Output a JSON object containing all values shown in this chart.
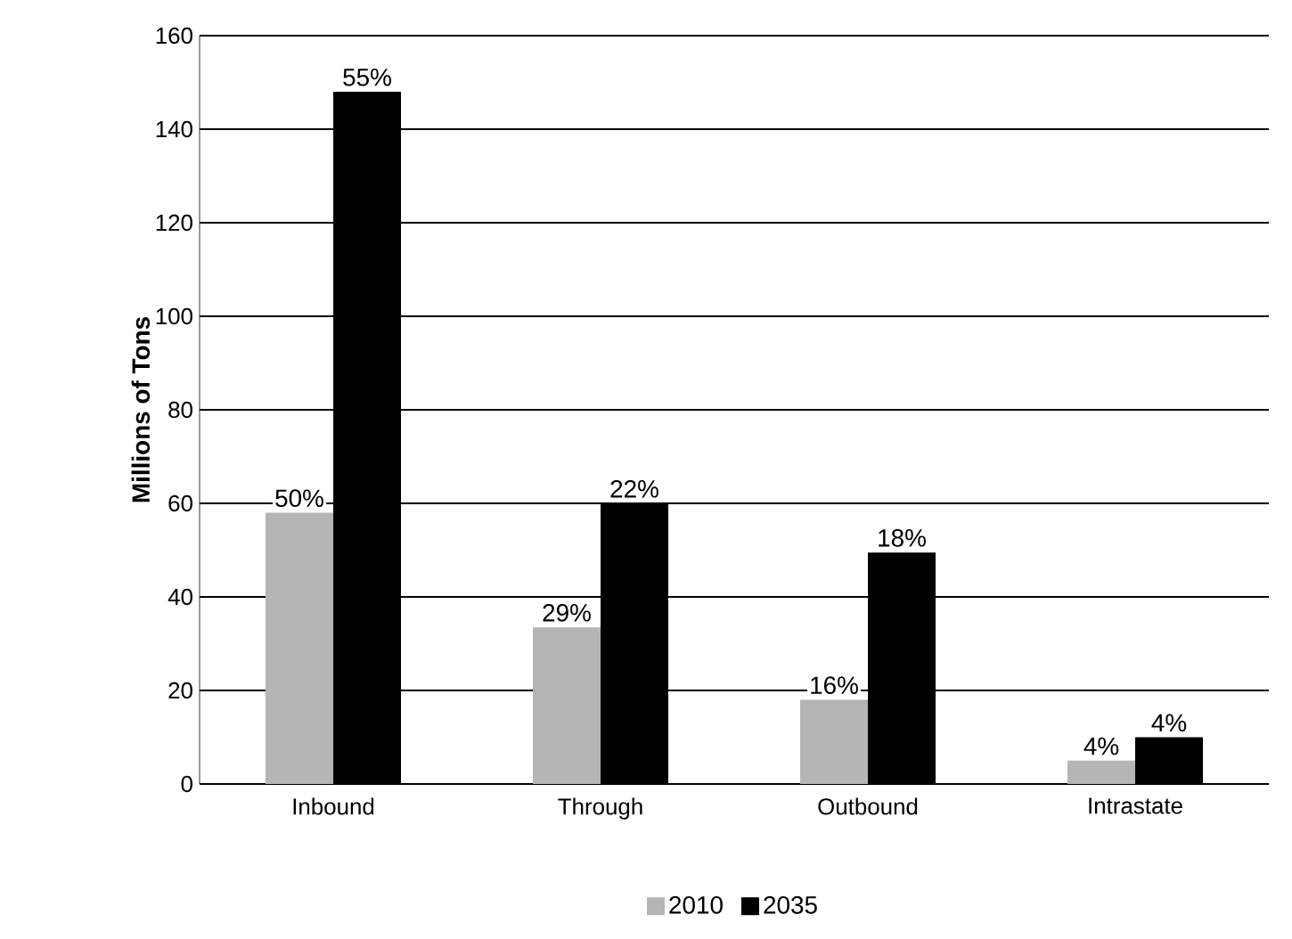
{
  "chart_data": {
    "type": "bar",
    "ylabel": "Millions of Tons",
    "categories": [
      "Inbound",
      "Through",
      "Outbound",
      "Intrastate"
    ],
    "series": [
      {
        "name": "2010",
        "color": "#b5b5b5",
        "values": [
          58,
          33.5,
          18,
          5
        ]
      },
      {
        "name": "2035",
        "color": "#000000",
        "values": [
          148,
          60,
          49.5,
          10
        ]
      }
    ],
    "annotations": [
      {
        "text": "50%",
        "x": "Inbound",
        "y": 58
      },
      {
        "text": "29%",
        "x": "Through",
        "y": 33.5
      },
      {
        "text": "16%",
        "x": "Outbound",
        "y": 18
      },
      {
        "text": "4%",
        "x": "Intrastate",
        "y": 5
      },
      {
        "text": "55%",
        "x": "Inbound",
        "y": 148
      },
      {
        "text": "22%",
        "x": "Through",
        "y": 60
      },
      {
        "text": "18%",
        "x": "Outbound",
        "y": 49.5
      },
      {
        "text": "4%",
        "x": "Intrastate",
        "y": 10
      }
    ],
    "ylim": [
      0,
      160
    ],
    "yticks": [
      0,
      20,
      40,
      60,
      80,
      100,
      120,
      140,
      160
    ],
    "grid": "y",
    "legend": "bottom"
  }
}
